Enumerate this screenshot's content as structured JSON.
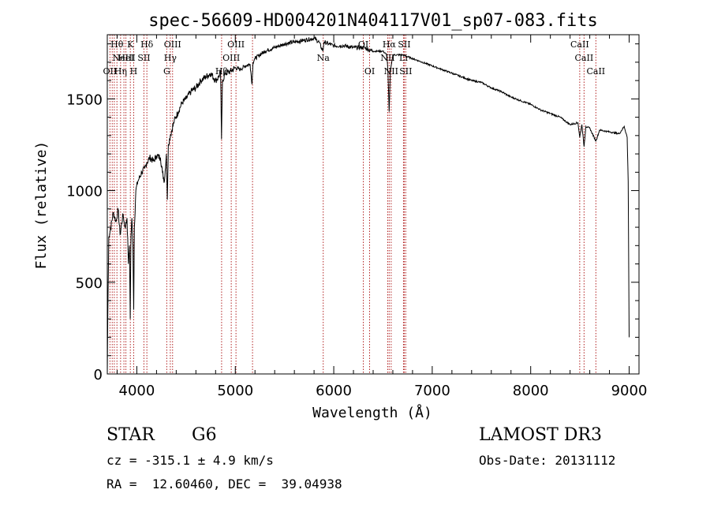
{
  "chart_data": {
    "type": "line",
    "title": "spec-56609-HD004201N404117V01_sp07-083.fits",
    "xlabel": "Wavelength (Å)",
    "ylabel": "Flux (relative)",
    "xlim": [
      3700,
      9100
    ],
    "ylim": [
      0,
      1850
    ],
    "x_ticks": [
      4000,
      5000,
      6000,
      7000,
      8000,
      9000
    ],
    "y_ticks": [
      0,
      500,
      1000,
      1500
    ],
    "grid": false,
    "series": [
      {
        "name": "flux",
        "x": [
          3700,
          3705,
          3715,
          3730,
          3760,
          3790,
          3810,
          3830,
          3860,
          3880,
          3900,
          3915,
          3925,
          3933,
          3940,
          3950,
          3960,
          3968,
          3975,
          3990,
          4010,
          4050,
          4080,
          4100,
          4130,
          4170,
          4200,
          4240,
          4260,
          4280,
          4300,
          4310,
          4320,
          4340,
          4380,
          4420,
          4460,
          4500,
          4550,
          4600,
          4650,
          4700,
          4750,
          4800,
          4830,
          4850,
          4860,
          4870,
          4900,
          4950,
          5000,
          5050,
          5100,
          5150,
          5170,
          5180,
          5200,
          5250,
          5300,
          5400,
          5500,
          5600,
          5700,
          5800,
          5850,
          5890,
          5900,
          5950,
          6000,
          6100,
          6200,
          6300,
          6400,
          6500,
          6540,
          6550,
          6563,
          6575,
          6600,
          6700,
          6800,
          6900,
          7000,
          7100,
          7200,
          7300,
          7400,
          7500,
          7600,
          7700,
          7800,
          7900,
          8000,
          8100,
          8200,
          8300,
          8400,
          8480,
          8498,
          8520,
          8542,
          8560,
          8600,
          8662,
          8700,
          8800,
          8900,
          8950,
          8980,
          8990,
          9000
        ],
        "y": [
          0,
          300,
          750,
          780,
          880,
          830,
          900,
          760,
          870,
          800,
          850,
          600,
          700,
          300,
          750,
          850,
          700,
          350,
          800,
          1000,
          1050,
          1100,
          1120,
          1150,
          1180,
          1160,
          1190,
          1180,
          1100,
          1050,
          1200,
          950,
          1250,
          1300,
          1380,
          1430,
          1480,
          1500,
          1540,
          1560,
          1600,
          1620,
          1640,
          1600,
          1620,
          1650,
          1280,
          1600,
          1640,
          1650,
          1670,
          1660,
          1680,
          1690,
          1580,
          1700,
          1720,
          1740,
          1760,
          1780,
          1800,
          1810,
          1820,
          1830,
          1810,
          1760,
          1810,
          1800,
          1790,
          1790,
          1780,
          1780,
          1760,
          1760,
          1740,
          1650,
          1430,
          1650,
          1740,
          1740,
          1720,
          1700,
          1680,
          1660,
          1640,
          1620,
          1600,
          1590,
          1560,
          1540,
          1510,
          1490,
          1470,
          1440,
          1420,
          1400,
          1360,
          1370,
          1290,
          1360,
          1240,
          1350,
          1340,
          1270,
          1330,
          1320,
          1310,
          1350,
          1290,
          1050,
          200
        ]
      }
    ],
    "line_marks": [
      {
        "wl": 3727,
        "label": "OII",
        "row": 2
      },
      {
        "wl": 3750,
        "label": "",
        "row": 0
      },
      {
        "wl": 3771,
        "label": "",
        "row": 0
      },
      {
        "wl": 3798,
        "label": "Hθ",
        "row": 0
      },
      {
        "wl": 3835,
        "label": "Hη",
        "row": 2
      },
      {
        "wl": 3869,
        "label": "NeIII",
        "row": 1
      },
      {
        "wl": 3889,
        "label": "HeI",
        "row": 1
      },
      {
        "wl": 3934,
        "label": "K",
        "row": 0
      },
      {
        "wl": 3968,
        "label": "H",
        "row": 2
      },
      {
        "wl": 4072,
        "label": "SII",
        "row": 1
      },
      {
        "wl": 4102,
        "label": "Hδ",
        "row": 0
      },
      {
        "wl": 4304,
        "label": "G",
        "row": 2
      },
      {
        "wl": 4340,
        "label": "Hγ",
        "row": 1
      },
      {
        "wl": 4363,
        "label": "OIII",
        "row": 0
      },
      {
        "wl": 4861,
        "label": "Hβ",
        "row": 2
      },
      {
        "wl": 4959,
        "label": "OIII",
        "row": 1
      },
      {
        "wl": 5007,
        "label": "OIII",
        "row": 0
      },
      {
        "wl": 5175,
        "label": "",
        "row": 0
      },
      {
        "wl": 5893,
        "label": "Na",
        "row": 1
      },
      {
        "wl": 6300,
        "label": "OI",
        "row": 0
      },
      {
        "wl": 6364,
        "label": "OI",
        "row": 2
      },
      {
        "wl": 6548,
        "label": "NII",
        "row": 1
      },
      {
        "wl": 6563,
        "label": "Hα",
        "row": 0
      },
      {
        "wl": 6583,
        "label": "NII",
        "row": 2
      },
      {
        "wl": 6708,
        "label": "Li",
        "row": 1
      },
      {
        "wl": 6716,
        "label": "SII",
        "row": 0
      },
      {
        "wl": 6731,
        "label": "SII",
        "row": 2
      },
      {
        "wl": 8498,
        "label": "CaII",
        "row": 0
      },
      {
        "wl": 8542,
        "label": "CaII",
        "row": 1
      },
      {
        "wl": 8662,
        "label": "CaII",
        "row": 2
      }
    ]
  },
  "info": {
    "object_class": "STAR",
    "subclass": "G6",
    "survey": "LAMOST DR3",
    "cz": "cz = -315.1 ± 4.9 km/s",
    "obs_date": "Obs-Date: 20131112",
    "coords": "RA =  12.60460, DEC =  39.04938"
  },
  "colors": {
    "line": "#000000",
    "mark": "#b22222"
  }
}
